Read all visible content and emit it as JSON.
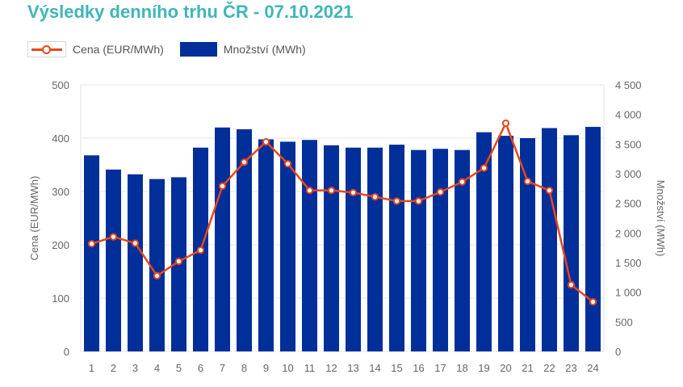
{
  "title": "Výsledky denního trhu ČR - 07.10.2021",
  "legend": {
    "price": "Cena (EUR/MWh)",
    "volume": "Množství (MWh)"
  },
  "colors": {
    "title": "#3fb6b8",
    "bars": "#002f9a",
    "line": "#e8461c"
  },
  "chart_data": {
    "type": "bar",
    "categories": [
      "1",
      "2",
      "3",
      "4",
      "5",
      "6",
      "7",
      "8",
      "9",
      "10",
      "11",
      "12",
      "13",
      "14",
      "15",
      "16",
      "17",
      "18",
      "19",
      "20",
      "21",
      "22",
      "23",
      "24"
    ],
    "series": [
      {
        "name": "Množství (MWh)",
        "type": "bar",
        "axis": "right",
        "values": [
          3310,
          3070,
          2990,
          2910,
          2940,
          3440,
          3780,
          3750,
          3580,
          3540,
          3570,
          3480,
          3440,
          3440,
          3490,
          3400,
          3420,
          3400,
          3700,
          3640,
          3600,
          3770,
          3650,
          3790
        ]
      },
      {
        "name": "Cena (EUR/MWh)",
        "type": "line",
        "axis": "left",
        "values": [
          202,
          215,
          203,
          142,
          169,
          190,
          310,
          355,
          393,
          352,
          302,
          302,
          298,
          290,
          282,
          282,
          299,
          318,
          344,
          428,
          319,
          302,
          125,
          93
        ]
      }
    ],
    "ylabel_left": "Cena (EUR/MWh)",
    "ylabel_right": "Množství (MWh)",
    "ylim_left": [
      0,
      500
    ],
    "ylim_right": [
      0,
      4500
    ],
    "yticks_left": [
      "0",
      "100",
      "200",
      "300",
      "400",
      "500"
    ],
    "yticks_right": [
      "0",
      "500",
      "1 000",
      "1 500",
      "2 000",
      "2 500",
      "3 000",
      "3 500",
      "4 000",
      "4 500"
    ],
    "grid": true,
    "legend_position": "top-left"
  }
}
